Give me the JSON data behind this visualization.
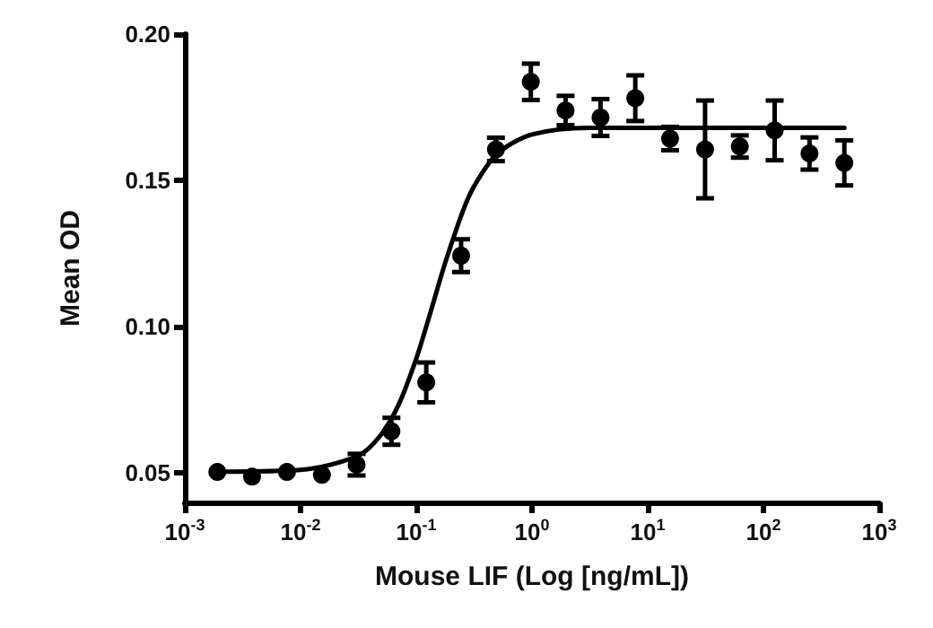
{
  "chart_data": {
    "type": "scatter",
    "xlabel": "Mouse LIF (Log [ng/mL])",
    "ylabel": "Mean OD",
    "log": "x",
    "grid": false,
    "marker": "circle",
    "xlim": [
      0.001,
      1000
    ],
    "xticks": [
      {
        "value": 0.001,
        "label": "10$^{-3}$"
      },
      {
        "value": 0.01,
        "label": "10$^{-2}$"
      },
      {
        "value": 0.1,
        "label": "10$^{-1}$"
      },
      {
        "value": 1,
        "label": "10$^{0}$"
      },
      {
        "value": 10,
        "label": "10$^{1}$"
      },
      {
        "value": 100,
        "label": "10$^{2}$"
      },
      {
        "value": 1000,
        "label": "10$^{3}$"
      }
    ],
    "ylim": [
      0.04,
      0.2
    ],
    "yticks": [
      {
        "value": 0.05,
        "label": "0.05"
      },
      {
        "value": 0.1,
        "label": "0.10"
      },
      {
        "value": 0.15,
        "label": "0.15"
      },
      {
        "value": 0.2,
        "label": "0.20"
      }
    ],
    "series": [
      {
        "color": "#000000",
        "x": [
          0.00191,
          0.00381,
          0.00763,
          0.0153,
          0.0305,
          0.061,
          0.122,
          0.244,
          0.488,
          0.977,
          1.95,
          3.91,
          7.81,
          15.6,
          31.3,
          62.5,
          125,
          250,
          500
        ],
        "values": [
          0.0504,
          0.0488,
          0.0504,
          0.0494,
          0.0529,
          0.0643,
          0.081,
          0.1243,
          0.1606,
          0.1837,
          0.1739,
          0.1715,
          0.1781,
          0.1643,
          0.1606,
          0.1616,
          0.1671,
          0.1592,
          0.156
        ],
        "errors": [
          null,
          null,
          null,
          null,
          0.0037,
          0.0046,
          0.0068,
          0.0056,
          0.004,
          0.0062,
          0.005,
          0.0063,
          0.0078,
          0.004,
          0.0167,
          0.0038,
          0.0102,
          0.0055,
          0.0077
        ]
      },
      {
        "type": "line",
        "color": "#000000",
        "marker": "none",
        "x": [
          0.00191,
          0.01,
          0.0316,
          0.05,
          0.0708,
          0.1,
          0.126,
          0.143,
          0.178,
          0.251,
          0.316,
          0.5,
          1,
          3.16,
          500
        ],
        "values": [
          0.0505,
          0.0511,
          0.056,
          0.0633,
          0.0736,
          0.0891,
          0.1019,
          0.1093,
          0.1219,
          0.1392,
          0.148,
          0.1591,
          0.1657,
          0.168,
          0.168
        ]
      }
    ]
  }
}
